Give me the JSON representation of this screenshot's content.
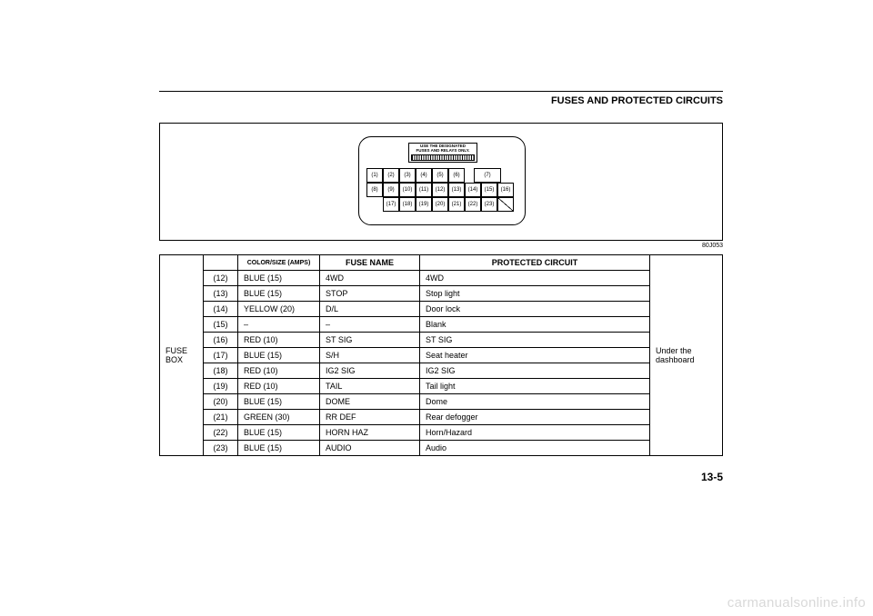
{
  "header": {
    "title": "FUSES AND PROTECTED CIRCUITS"
  },
  "diagram": {
    "warning_line1": "USE THE DESIGNATED",
    "warning_line2": "FUSES AND RELAYS ONLY.",
    "row1": [
      "(1)",
      "(2)",
      "(3)",
      "(4)",
      "(5)",
      "(6)"
    ],
    "row1_extra": "(7)",
    "row2": [
      "(8)",
      "(9)",
      "(10)",
      "(11)",
      "(12)",
      "(13)",
      "(14)",
      "(15)",
      "(16)"
    ],
    "row3_pad": " ",
    "row3": [
      "(17)",
      "(18)",
      "(19)",
      "(20)",
      "(21)",
      "(22)",
      "(23)"
    ],
    "figure_id": "80J053"
  },
  "table": {
    "headers": {
      "color": "COLOR/SIZE (AMPS)",
      "name": "FUSE NAME",
      "circuit": "PROTECTED CIRCUIT"
    },
    "box_label": "FUSE\nBOX",
    "location": "Under the\ndashboard",
    "rows": [
      {
        "n": "(12)",
        "c": "BLUE (15)",
        "f": "4WD",
        "p": "4WD"
      },
      {
        "n": "(13)",
        "c": "BLUE (15)",
        "f": "STOP",
        "p": "Stop light"
      },
      {
        "n": "(14)",
        "c": "YELLOW (20)",
        "f": "D/L",
        "p": "Door lock"
      },
      {
        "n": "(15)",
        "c": "–",
        "f": "–",
        "p": "Blank"
      },
      {
        "n": "(16)",
        "c": "RED (10)",
        "f": "ST SIG",
        "p": "ST SIG"
      },
      {
        "n": "(17)",
        "c": "BLUE (15)",
        "f": "S/H",
        "p": "Seat heater"
      },
      {
        "n": "(18)",
        "c": "RED (10)",
        "f": "IG2 SIG",
        "p": "IG2 SIG"
      },
      {
        "n": "(19)",
        "c": "RED (10)",
        "f": "TAIL",
        "p": "Tail light"
      },
      {
        "n": "(20)",
        "c": "BLUE (15)",
        "f": "DOME",
        "p": "Dome"
      },
      {
        "n": "(21)",
        "c": "GREEN (30)",
        "f": "RR DEF",
        "p": "Rear defogger"
      },
      {
        "n": "(22)",
        "c": "BLUE (15)",
        "f": "HORN HAZ",
        "p": "Horn/Hazard"
      },
      {
        "n": "(23)",
        "c": "BLUE (15)",
        "f": "AUDIO",
        "p": "Audio"
      }
    ]
  },
  "page_number": "13-5",
  "watermark": "carmanualsonline.info"
}
